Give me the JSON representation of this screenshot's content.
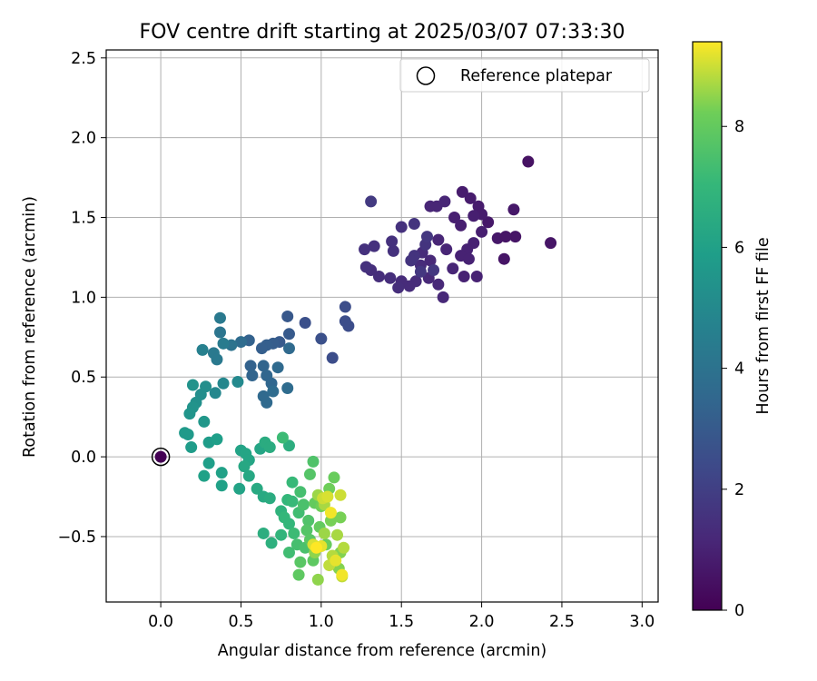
{
  "chart_data": {
    "type": "scatter",
    "title": "FOV centre drift starting at 2025/03/07 07:33:30",
    "xlabel": "Angular distance from reference (arcmin)",
    "ylabel": "Rotation from reference (arcmin)",
    "xlim": [
      -0.34,
      3.1
    ],
    "ylim": [
      -0.91,
      2.55
    ],
    "xticks": [
      0.0,
      0.5,
      1.0,
      1.5,
      2.0,
      2.5,
      3.0
    ],
    "xtick_labels": [
      "0.0",
      "0.5",
      "1.0",
      "1.5",
      "2.0",
      "2.5",
      "3.0"
    ],
    "yticks": [
      -0.5,
      0.0,
      0.5,
      1.0,
      1.5,
      2.0,
      2.5
    ],
    "ytick_labels": [
      "−0.5",
      "0.0",
      "0.5",
      "1.0",
      "1.5",
      "2.0",
      "2.5"
    ],
    "grid": true,
    "legend": {
      "position": "top-right",
      "entries": [
        "Reference platepar"
      ]
    },
    "colorbar": {
      "label": "Hours from first FF file",
      "range": [
        0,
        9.4
      ],
      "ticks": [
        0,
        2,
        4,
        6,
        8
      ],
      "colormap": "viridis"
    },
    "reference_point": {
      "x": 0.0,
      "y": 0.0
    },
    "points": [
      [
        0.0,
        0.0,
        0.0
      ],
      [
        2.29,
        1.85,
        0.5
      ],
      [
        2.43,
        1.34,
        0.6
      ],
      [
        2.21,
        1.38,
        0.6
      ],
      [
        2.2,
        1.55,
        0.7
      ],
      [
        2.14,
        1.24,
        0.6
      ],
      [
        2.1,
        1.37,
        0.7
      ],
      [
        2.15,
        1.38,
        0.6
      ],
      [
        2.04,
        1.47,
        0.7
      ],
      [
        1.98,
        1.57,
        0.8
      ],
      [
        1.93,
        1.62,
        0.8
      ],
      [
        1.88,
        1.66,
        0.8
      ],
      [
        2.0,
        1.52,
        0.8
      ],
      [
        1.95,
        1.51,
        0.9
      ],
      [
        1.87,
        1.45,
        0.9
      ],
      [
        1.83,
        1.5,
        0.9
      ],
      [
        2.0,
        1.41,
        0.9
      ],
      [
        1.95,
        1.34,
        1.0
      ],
      [
        1.91,
        1.3,
        1.0
      ],
      [
        1.87,
        1.26,
        1.0
      ],
      [
        1.92,
        1.24,
        1.0
      ],
      [
        1.97,
        1.13,
        1.0
      ],
      [
        1.89,
        1.13,
        1.0
      ],
      [
        1.82,
        1.18,
        1.1
      ],
      [
        1.78,
        1.3,
        1.1
      ],
      [
        1.73,
        1.36,
        1.1
      ],
      [
        1.77,
        1.6,
        1.1
      ],
      [
        1.72,
        1.57,
        1.1
      ],
      [
        1.68,
        1.57,
        1.1
      ],
      [
        1.76,
        1.0,
        1.2
      ],
      [
        1.73,
        1.08,
        1.2
      ],
      [
        1.67,
        1.12,
        1.2
      ],
      [
        1.68,
        1.23,
        1.2
      ],
      [
        1.63,
        1.28,
        1.3
      ],
      [
        1.62,
        1.2,
        1.3
      ],
      [
        1.59,
        1.1,
        1.3
      ],
      [
        1.55,
        1.07,
        1.3
      ],
      [
        1.5,
        1.1,
        1.3
      ],
      [
        1.48,
        1.06,
        1.4
      ],
      [
        1.43,
        1.12,
        1.4
      ],
      [
        1.36,
        1.13,
        1.4
      ],
      [
        1.31,
        1.17,
        1.4
      ],
      [
        1.28,
        1.19,
        1.5
      ],
      [
        1.27,
        1.3,
        1.5
      ],
      [
        1.33,
        1.32,
        1.5
      ],
      [
        1.45,
        1.29,
        1.5
      ],
      [
        1.44,
        1.35,
        1.5
      ],
      [
        1.5,
        1.44,
        1.5
      ],
      [
        1.58,
        1.46,
        1.6
      ],
      [
        1.65,
        1.33,
        1.6
      ],
      [
        1.58,
        1.26,
        1.6
      ],
      [
        1.56,
        1.23,
        1.6
      ],
      [
        1.62,
        1.16,
        1.7
      ],
      [
        1.7,
        1.17,
        1.7
      ],
      [
        1.31,
        1.6,
        1.8
      ],
      [
        1.66,
        1.38,
        1.7
      ],
      [
        1.17,
        0.82,
        2.5
      ],
      [
        1.15,
        0.85,
        2.5
      ],
      [
        1.15,
        0.94,
        2.5
      ],
      [
        1.07,
        0.62,
        2.5
      ],
      [
        1.0,
        0.74,
        2.6
      ],
      [
        0.9,
        0.84,
        2.6
      ],
      [
        0.79,
        0.88,
        2.9
      ],
      [
        0.8,
        0.77,
        3.0
      ],
      [
        0.74,
        0.72,
        3.0
      ],
      [
        0.7,
        0.71,
        3.1
      ],
      [
        0.66,
        0.7,
        3.2
      ],
      [
        0.63,
        0.68,
        3.2
      ],
      [
        0.55,
        0.73,
        3.3
      ],
      [
        0.56,
        0.57,
        3.3
      ],
      [
        0.57,
        0.51,
        3.4
      ],
      [
        0.64,
        0.57,
        3.4
      ],
      [
        0.66,
        0.51,
        3.5
      ],
      [
        0.69,
        0.46,
        3.5
      ],
      [
        0.64,
        0.38,
        3.6
      ],
      [
        0.66,
        0.34,
        3.6
      ],
      [
        0.7,
        0.41,
        3.7
      ],
      [
        0.79,
        0.43,
        3.7
      ],
      [
        0.8,
        0.68,
        3.6
      ],
      [
        0.73,
        0.56,
        3.6
      ],
      [
        0.5,
        0.72,
        3.7
      ],
      [
        0.44,
        0.7,
        4.0
      ],
      [
        0.37,
        0.78,
        4.1
      ],
      [
        0.37,
        0.87,
        4.3
      ],
      [
        0.33,
        0.65,
        4.3
      ],
      [
        0.35,
        0.61,
        4.3
      ],
      [
        0.39,
        0.71,
        4.4
      ],
      [
        0.26,
        0.67,
        4.6
      ],
      [
        0.39,
        0.46,
        4.9
      ],
      [
        0.34,
        0.4,
        4.9
      ],
      [
        0.48,
        0.47,
        5.0
      ],
      [
        0.28,
        0.44,
        5.2
      ],
      [
        0.25,
        0.39,
        5.2
      ],
      [
        0.22,
        0.34,
        5.3
      ],
      [
        0.2,
        0.45,
        5.4
      ],
      [
        0.2,
        0.31,
        5.4
      ],
      [
        0.18,
        0.27,
        5.5
      ],
      [
        0.27,
        0.22,
        5.6
      ],
      [
        0.15,
        0.15,
        5.7
      ],
      [
        0.17,
        0.14,
        5.7
      ],
      [
        0.19,
        0.06,
        5.8
      ],
      [
        0.3,
        0.09,
        5.8
      ],
      [
        0.35,
        0.11,
        5.9
      ],
      [
        0.3,
        -0.04,
        5.9
      ],
      [
        0.27,
        -0.12,
        6.0
      ],
      [
        0.38,
        -0.1,
        6.0
      ],
      [
        0.38,
        -0.18,
        6.0
      ],
      [
        0.49,
        -0.2,
        6.1
      ],
      [
        0.5,
        0.04,
        6.1
      ],
      [
        0.53,
        0.02,
        6.2
      ],
      [
        0.55,
        -0.02,
        6.2
      ],
      [
        0.62,
        0.05,
        6.2
      ],
      [
        0.52,
        -0.06,
        6.3
      ],
      [
        0.55,
        -0.12,
        6.3
      ],
      [
        0.6,
        -0.2,
        6.4
      ],
      [
        0.64,
        -0.25,
        6.4
      ],
      [
        0.68,
        -0.26,
        6.5
      ],
      [
        0.65,
        0.09,
        6.5
      ],
      [
        0.68,
        0.06,
        6.5
      ],
      [
        0.8,
        0.07,
        6.6
      ],
      [
        0.64,
        -0.48,
        6.6
      ],
      [
        0.69,
        -0.54,
        6.7
      ],
      [
        0.75,
        -0.34,
        6.8
      ],
      [
        0.75,
        -0.49,
        6.9
      ],
      [
        0.77,
        -0.38,
        7.0
      ],
      [
        0.79,
        -0.27,
        7.0
      ],
      [
        0.8,
        -0.42,
        7.0
      ],
      [
        0.82,
        -0.28,
        7.1
      ],
      [
        0.82,
        -0.16,
        7.1
      ],
      [
        0.76,
        0.12,
        7.2
      ],
      [
        0.83,
        -0.48,
        7.2
      ],
      [
        0.8,
        -0.6,
        7.3
      ],
      [
        0.86,
        -0.35,
        7.3
      ],
      [
        0.87,
        -0.22,
        7.4
      ],
      [
        0.85,
        -0.55,
        7.4
      ],
      [
        0.89,
        -0.3,
        7.5
      ],
      [
        0.9,
        -0.57,
        7.5
      ],
      [
        0.92,
        -0.4,
        7.6
      ],
      [
        0.95,
        -0.03,
        7.6
      ],
      [
        0.93,
        -0.11,
        7.7
      ],
      [
        0.91,
        -0.46,
        7.7
      ],
      [
        0.93,
        -0.52,
        7.8
      ],
      [
        0.87,
        -0.66,
        7.8
      ],
      [
        0.86,
        -0.74,
        7.9
      ],
      [
        0.95,
        -0.65,
        7.9
      ],
      [
        0.96,
        -0.29,
        8.0
      ],
      [
        0.99,
        -0.44,
        8.0
      ],
      [
        1.08,
        -0.13,
        8.1
      ],
      [
        1.03,
        -0.55,
        8.1
      ],
      [
        1.0,
        -0.31,
        8.2
      ],
      [
        1.05,
        -0.2,
        8.2
      ],
      [
        1.06,
        -0.4,
        8.3
      ],
      [
        1.12,
        -0.38,
        8.3
      ],
      [
        1.12,
        -0.6,
        8.4
      ],
      [
        1.11,
        -0.7,
        8.4
      ],
      [
        0.98,
        -0.77,
        8.5
      ],
      [
        0.96,
        -0.6,
        8.5
      ],
      [
        1.02,
        -0.48,
        8.6
      ],
      [
        0.98,
        -0.24,
        8.6
      ],
      [
        1.02,
        -0.3,
        8.7
      ],
      [
        1.1,
        -0.49,
        8.7
      ],
      [
        1.14,
        -0.57,
        8.8
      ],
      [
        1.07,
        -0.62,
        8.8
      ],
      [
        1.05,
        -0.68,
        8.9
      ],
      [
        1.13,
        -0.75,
        8.9
      ],
      [
        1.01,
        -0.26,
        9.0
      ],
      [
        1.12,
        -0.24,
        9.0
      ],
      [
        1.04,
        -0.25,
        9.1
      ],
      [
        0.95,
        -0.55,
        9.1
      ],
      [
        1.0,
        -0.56,
        9.2
      ],
      [
        1.09,
        -0.65,
        9.2
      ],
      [
        1.13,
        -0.74,
        9.3
      ],
      [
        1.06,
        -0.35,
        9.3
      ],
      [
        0.97,
        -0.57,
        9.4
      ]
    ]
  }
}
